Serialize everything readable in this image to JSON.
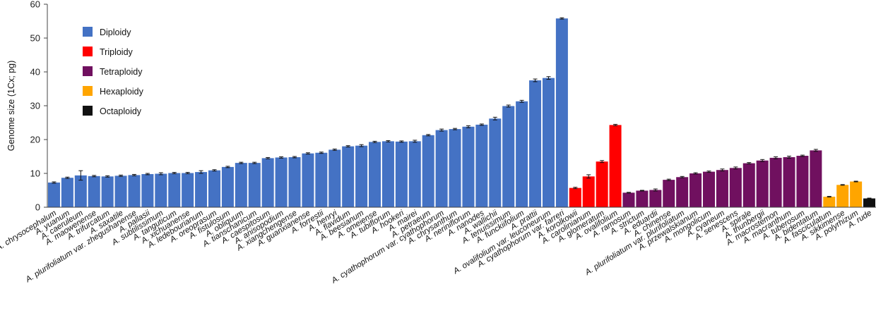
{
  "chart_data": {
    "type": "bar",
    "ylabel": "Genome size (1Cx; pg)",
    "ylim": [
      0,
      60
    ],
    "yticks": [
      0,
      10,
      20,
      30,
      40,
      50,
      60
    ],
    "grid": false,
    "legend_position": "top-left",
    "legend": [
      {
        "key": "diploidy",
        "label": "Diploidy",
        "color": "#4472C4"
      },
      {
        "key": "triploidy",
        "label": "Triploidy",
        "color": "#FF0000"
      },
      {
        "key": "tetraploidy",
        "label": "Tetraploidy",
        "color": "#70105F"
      },
      {
        "key": "hexaploidy",
        "label": "Hexaploidy",
        "color": "#FFA500"
      },
      {
        "key": "octaploidy",
        "label": "Octaploidy",
        "color": "#111111"
      }
    ],
    "categories": [
      "A. chrysocephalum",
      "A. yuanum",
      "A. caeruleum",
      "A. maowenense",
      "A. trifurcatum",
      "A. saxatile",
      "A. plurifoliatum var. zhegushanense",
      "A. pallasii",
      "A. subtilissimum",
      "A. tanguticum",
      "A. xichuanense",
      "A. ledebourianum",
      "A. oreoprasum",
      "A. fistulosum",
      "A. obliquum",
      "A. tianschanicum",
      "A. caespitosum",
      "A. anisopodium",
      "A. xiangchengense",
      "A. guanxianense",
      "A. forrestii",
      "A. henryi",
      "A. flavidum",
      "A. beesianum",
      "A. omeiense",
      "A. tubiflorum",
      "A. hookeri",
      "A. mairei",
      "A. petraeum",
      "A. cyathophorum var. cyathophorum",
      "A. chrysanthum",
      "A. neriniflorum",
      "A. nanodes",
      "A. wallichii",
      "A. tenuissimum",
      "A. funckiifolium",
      "A. prattii",
      "A. ovalifolium var. leuconeurum",
      "A. cyathophorum var. farreri",
      "A. korolkowii",
      "A. carolinianum",
      "A. glomeratum",
      "A. ovalifolium",
      "A. ramosum",
      "A. strictum",
      "A. eduardii",
      "A. chinense",
      "A. plurifoliatum var. plurifoliatum",
      "A. przewalskianum",
      "A. mongolicum",
      "A. cyaneum",
      "A. senescens",
      "A. spirale",
      "A. thunbergii",
      "A. macrostemon",
      "A. macranthum",
      "A. tuberosum",
      "A. bidentatum",
      "A. fasciculatum",
      "A. sikkimense",
      "A. polyrhizum",
      "A. rude"
    ],
    "values": [
      7.3,
      8.7,
      9.4,
      9.2,
      9.1,
      9.3,
      9.5,
      9.8,
      9.9,
      10.1,
      10.1,
      10.4,
      10.9,
      11.9,
      13.1,
      13.1,
      14.5,
      14.7,
      14.8,
      15.9,
      16.1,
      17.0,
      18.0,
      18.2,
      19.3,
      19.5,
      19.4,
      19.5,
      21.3,
      22.8,
      23.1,
      23.8,
      24.4,
      26.2,
      29.9,
      31.3,
      37.5,
      38.2,
      55.8,
      5.7,
      9.1,
      13.5,
      24.3,
      4.3,
      4.9,
      5.1,
      8.1,
      8.9,
      10.0,
      10.5,
      11.0,
      11.6,
      13.0,
      13.8,
      14.6,
      14.8,
      15.2,
      16.8,
      3.1,
      6.6,
      7.6,
      2.6
    ],
    "errors": [
      0.2,
      0.2,
      1.4,
      0.2,
      0.2,
      0.2,
      0.2,
      0.2,
      0.3,
      0.2,
      0.2,
      0.4,
      0.2,
      0.2,
      0.2,
      0.2,
      0.2,
      0.2,
      0.2,
      0.2,
      0.2,
      0.2,
      0.2,
      0.3,
      0.2,
      0.2,
      0.2,
      0.3,
      0.2,
      0.3,
      0.2,
      0.3,
      0.2,
      0.4,
      0.3,
      0.3,
      0.4,
      0.4,
      0.2,
      0.2,
      0.5,
      0.3,
      0.2,
      0.1,
      0.1,
      0.3,
      0.2,
      0.2,
      0.2,
      0.2,
      0.3,
      0.3,
      0.2,
      0.3,
      0.3,
      0.3,
      0.2,
      0.3,
      0.1,
      0.1,
      0.1,
      0.1
    ],
    "ploidy": [
      "diploidy",
      "diploidy",
      "diploidy",
      "diploidy",
      "diploidy",
      "diploidy",
      "diploidy",
      "diploidy",
      "diploidy",
      "diploidy",
      "diploidy",
      "diploidy",
      "diploidy",
      "diploidy",
      "diploidy",
      "diploidy",
      "diploidy",
      "diploidy",
      "diploidy",
      "diploidy",
      "diploidy",
      "diploidy",
      "diploidy",
      "diploidy",
      "diploidy",
      "diploidy",
      "diploidy",
      "diploidy",
      "diploidy",
      "diploidy",
      "diploidy",
      "diploidy",
      "diploidy",
      "diploidy",
      "diploidy",
      "diploidy",
      "diploidy",
      "diploidy",
      "diploidy",
      "triploidy",
      "triploidy",
      "triploidy",
      "triploidy",
      "tetraploidy",
      "tetraploidy",
      "tetraploidy",
      "tetraploidy",
      "tetraploidy",
      "tetraploidy",
      "tetraploidy",
      "tetraploidy",
      "tetraploidy",
      "tetraploidy",
      "tetraploidy",
      "tetraploidy",
      "tetraploidy",
      "tetraploidy",
      "tetraploidy",
      "hexaploidy",
      "hexaploidy",
      "hexaploidy",
      "octaploidy"
    ]
  }
}
